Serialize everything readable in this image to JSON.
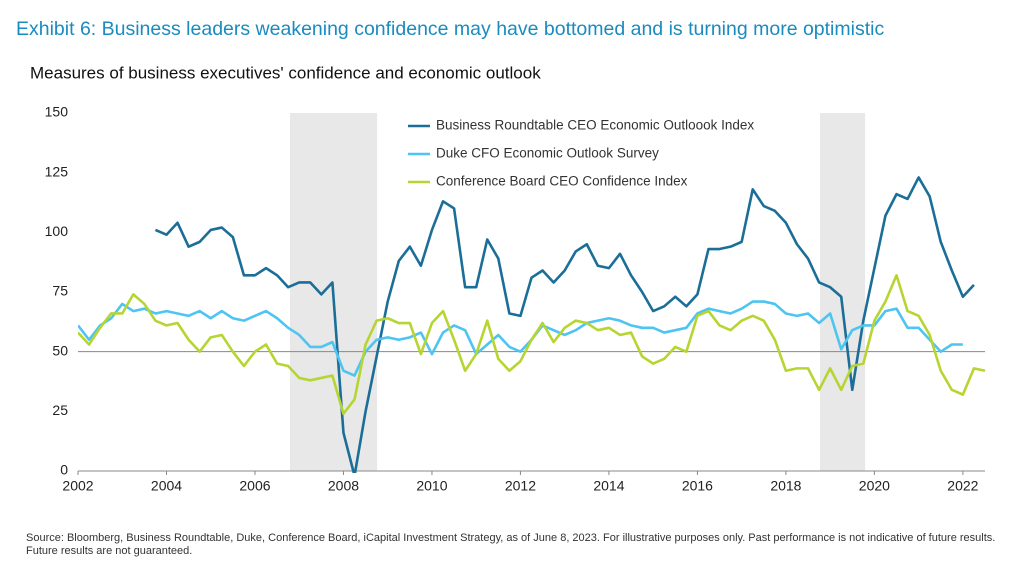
{
  "chart_data": {
    "type": "line",
    "title": "Exhibit 6: Business leaders weakening confidence may have bottomed and is turning more optimistic",
    "subtitle": "Measures of business executives' confidence and economic outlook",
    "source": "Source: Bloomberg, Business Roundtable, Duke, Conference Board, iCapital Investment Strategy, as of June 8, 2023. For illustrative purposes only. Past performance is not indicative of future results. Future results are not guaranteed.",
    "x": [
      2002,
      2002.25,
      2002.5,
      2002.75,
      2003,
      2003.25,
      2003.5,
      2003.75,
      2004,
      2004.25,
      2004.5,
      2004.75,
      2005,
      2005.25,
      2005.5,
      2005.75,
      2006,
      2006.25,
      2006.5,
      2006.75,
      2007,
      2007.25,
      2007.5,
      2007.75,
      2008,
      2008.25,
      2008.5,
      2008.75,
      2009,
      2009.25,
      2009.5,
      2009.75,
      2010,
      2010.25,
      2010.5,
      2010.75,
      2011,
      2011.25,
      2011.5,
      2011.75,
      2012,
      2012.25,
      2012.5,
      2012.75,
      2013,
      2013.25,
      2013.5,
      2013.75,
      2014,
      2014.25,
      2014.5,
      2014.75,
      2015,
      2015.25,
      2015.5,
      2015.75,
      2016,
      2016.25,
      2016.5,
      2016.75,
      2017,
      2017.25,
      2017.5,
      2017.75,
      2018,
      2018.25,
      2018.5,
      2018.75,
      2019,
      2019.25,
      2019.5,
      2019.75,
      2020,
      2020.25,
      2020.5,
      2020.75,
      2021,
      2021.25,
      2021.5,
      2021.75,
      2022,
      2022.25,
      2022.5
    ],
    "series": [
      {
        "name": "Business Roundtable CEO Economic Outloook Index",
        "color": "#1b6e98",
        "values": [
          null,
          null,
          null,
          null,
          null,
          null,
          null,
          101,
          99,
          104,
          94,
          96,
          101,
          102,
          98,
          82,
          82,
          85,
          82,
          77,
          79,
          79,
          74,
          79,
          16,
          -2,
          25,
          48,
          71,
          88,
          94,
          86,
          101,
          113,
          110,
          77,
          77,
          97,
          89,
          66,
          65,
          81,
          84,
          79,
          84,
          92,
          95,
          86,
          85,
          91,
          82,
          75,
          67,
          69,
          73,
          69,
          74,
          93,
          93,
          94,
          96,
          118,
          111,
          109,
          104,
          95,
          89,
          79,
          77,
          73,
          34,
          63,
          85,
          107,
          116,
          114,
          123,
          115,
          96,
          84,
          73,
          78,
          null
        ]
      },
      {
        "name": "Duke CFO Economic Outlook Survey",
        "color": "#4ec4f2",
        "values": [
          61,
          55,
          61,
          64,
          70,
          67,
          68,
          66,
          67,
          66,
          65,
          67,
          64,
          67,
          64,
          63,
          65,
          67,
          64,
          60,
          57,
          52,
          52,
          54,
          42,
          40,
          50,
          55,
          56,
          55,
          56,
          58,
          49,
          58,
          61,
          59,
          49,
          53,
          57,
          52,
          50,
          55,
          61,
          59,
          57,
          59,
          62,
          63,
          64,
          63,
          61,
          60,
          60,
          58,
          59,
          60,
          66,
          68,
          67,
          66,
          68,
          71,
          71,
          70,
          66,
          65,
          66,
          62,
          66,
          51,
          59,
          61,
          61,
          67,
          68,
          60,
          60,
          55,
          50,
          53,
          53,
          null,
          null
        ]
      },
      {
        "name": "Conference Board CEO Confidence Index",
        "color": "#b6d532",
        "values": [
          58,
          53,
          60,
          66,
          66,
          74,
          70,
          63,
          61,
          62,
          55,
          50,
          56,
          57,
          50,
          44,
          50,
          53,
          45,
          44,
          39,
          38,
          39,
          40,
          24,
          30,
          53,
          63,
          64,
          62,
          62,
          49,
          62,
          67,
          55,
          42,
          49,
          63,
          47,
          42,
          46,
          55,
          62,
          54,
          60,
          63,
          62,
          59,
          60,
          57,
          58,
          48,
          45,
          47,
          52,
          50,
          65,
          67,
          61,
          59,
          63,
          65,
          63,
          55,
          42,
          43,
          43,
          34,
          43,
          34,
          44,
          45,
          63,
          71,
          82,
          67,
          65,
          57,
          42,
          34,
          32,
          43,
          42
        ]
      }
    ],
    "shaded_periods": [
      [
        2006.79,
        2008.76
      ],
      [
        2018.77,
        2019.79
      ]
    ],
    "reference_line": 50,
    "xlim": [
      2002,
      2022.5
    ],
    "xticks": [
      2002,
      2004,
      2006,
      2008,
      2010,
      2012,
      2014,
      2016,
      2018,
      2020,
      2022
    ],
    "ylim": [
      0,
      150
    ],
    "yticks": [
      0,
      25,
      50,
      75,
      100,
      125,
      150
    ],
    "legend": "top-right"
  }
}
